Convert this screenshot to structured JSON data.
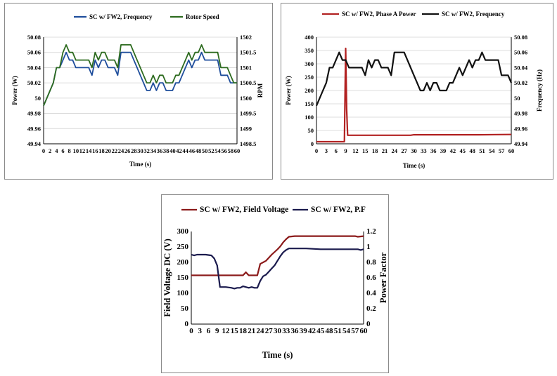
{
  "chart_data": [
    {
      "type": "line",
      "id": "chart1",
      "xlabel": "Time (s)",
      "ylabel": "Power (W)",
      "y2label": "RPM",
      "xlim": [
        0,
        60
      ],
      "ylim": [
        49.94,
        50.08
      ],
      "y2lim": [
        1498.5,
        1502
      ],
      "x_ticks": [
        "0",
        "2",
        "4",
        "6",
        "8",
        "10",
        "12",
        "14",
        "16",
        "18",
        "20",
        "22",
        "24",
        "26",
        "28",
        "30",
        "32",
        "34",
        "36",
        "38",
        "40",
        "42",
        "44",
        "46",
        "48",
        "50",
        "52",
        "54",
        "56",
        "58",
        "60"
      ],
      "y_ticks": [
        "49.94",
        "49.96",
        "49.98",
        "50",
        "50.02",
        "50.04",
        "50.06",
        "50.08"
      ],
      "y2_ticks": [
        "1498.5",
        "1499",
        "1499.5",
        "1500",
        "1500.5",
        "1501",
        "1501.5",
        "1502"
      ],
      "legend_position": "top",
      "grid": true,
      "series": [
        {
          "name": "SC w/ FW2, Frequency",
          "color": "#1f4e9c",
          "axis": "left",
          "x": [
            0,
            2,
            3,
            4,
            5,
            6,
            7,
            8,
            9,
            10,
            12,
            14,
            15,
            16,
            17,
            18,
            19,
            20,
            21,
            22,
            23,
            24,
            25,
            26,
            27,
            28,
            29,
            30,
            31,
            32,
            33,
            34,
            35,
            36,
            37,
            38,
            39,
            40,
            41,
            42,
            43,
            44,
            45,
            46,
            47,
            48,
            49,
            50,
            51,
            52,
            53,
            54,
            55,
            56,
            57,
            58,
            59,
            60
          ],
          "y": [
            49.99,
            50.01,
            50.02,
            50.04,
            50.04,
            50.05,
            50.06,
            50.05,
            50.05,
            50.04,
            50.04,
            50.04,
            50.03,
            50.05,
            50.04,
            50.05,
            50.05,
            50.04,
            50.04,
            50.04,
            50.03,
            50.06,
            50.06,
            50.06,
            50.06,
            50.05,
            50.04,
            50.03,
            50.02,
            50.01,
            50.01,
            50.02,
            50.01,
            50.02,
            50.02,
            50.01,
            50.01,
            50.01,
            50.02,
            50.02,
            50.03,
            50.04,
            50.05,
            50.04,
            50.05,
            50.05,
            50.06,
            50.05,
            50.05,
            50.05,
            50.05,
            50.05,
            50.03,
            50.03,
            50.03,
            50.02,
            50.02,
            50.02
          ]
        },
        {
          "name": "Rotor Speed",
          "color": "#2d6b1f",
          "axis": "right",
          "x": [
            0,
            2,
            3,
            4,
            5,
            6,
            7,
            8,
            9,
            10,
            12,
            14,
            15,
            16,
            17,
            18,
            19,
            20,
            21,
            22,
            23,
            24,
            25,
            26,
            27,
            28,
            29,
            30,
            31,
            32,
            33,
            34,
            35,
            36,
            37,
            38,
            39,
            40,
            41,
            42,
            43,
            44,
            45,
            46,
            47,
            48,
            49,
            50,
            51,
            52,
            53,
            54,
            55,
            56,
            57,
            58,
            59,
            60
          ],
          "y": [
            1499.75,
            1500.25,
            1500.5,
            1501.0,
            1501.0,
            1501.5,
            1501.75,
            1501.5,
            1501.5,
            1501.25,
            1501.25,
            1501.25,
            1501.0,
            1501.5,
            1501.25,
            1501.5,
            1501.5,
            1501.25,
            1501.25,
            1501.25,
            1501.0,
            1501.75,
            1501.75,
            1501.75,
            1501.75,
            1501.5,
            1501.25,
            1501.0,
            1500.75,
            1500.5,
            1500.5,
            1500.75,
            1500.5,
            1500.75,
            1500.75,
            1500.5,
            1500.5,
            1500.5,
            1500.75,
            1500.75,
            1501.0,
            1501.25,
            1501.5,
            1501.25,
            1501.5,
            1501.5,
            1501.75,
            1501.5,
            1501.5,
            1501.5,
            1501.5,
            1501.5,
            1501.0,
            1501.0,
            1501.0,
            1500.75,
            1500.5,
            1500.5
          ]
        }
      ]
    },
    {
      "type": "line",
      "id": "chart2",
      "xlabel": "Time (s)",
      "ylabel": "Power (W)",
      "y2label": "Frequency (Hz)",
      "xlim": [
        0,
        60
      ],
      "ylim": [
        0,
        400
      ],
      "y2lim": [
        49.94,
        50.08
      ],
      "x_ticks": [
        "0",
        "3",
        "6",
        "9",
        "12",
        "15",
        "18",
        "21",
        "24",
        "27",
        "30",
        "33",
        "36",
        "39",
        "42",
        "45",
        "48",
        "51",
        "54",
        "57",
        "60"
      ],
      "y_ticks": [
        "0",
        "50",
        "100",
        "150",
        "200",
        "250",
        "300",
        "350",
        "400"
      ],
      "y2_ticks": [
        "49.94",
        "49.96",
        "49.98",
        "50",
        "50.02",
        "50.04",
        "50.06",
        "50.08"
      ],
      "legend_position": "top",
      "grid": true,
      "series": [
        {
          "name": "SC w/ FW2, Phase A Power",
          "color": "#b22222",
          "axis": "left",
          "x": [
            0,
            8.6,
            9.0,
            9.3,
            9.6,
            10,
            20,
            29,
            30,
            40,
            50,
            60
          ],
          "y": [
            8,
            8,
            358,
            130,
            32,
            32,
            32,
            32,
            34,
            34,
            34,
            35
          ]
        },
        {
          "name": "SC w/ FW2, Frequency",
          "color": "#111111",
          "axis": "right",
          "x": [
            0,
            2,
            3,
            4,
            5,
            6,
            7,
            8,
            9,
            10,
            12,
            14,
            15,
            16,
            17,
            18,
            19,
            20,
            21,
            22,
            23,
            24,
            25,
            26,
            27,
            28,
            29,
            30,
            31,
            32,
            33,
            34,
            35,
            36,
            37,
            38,
            39,
            40,
            41,
            42,
            43,
            44,
            45,
            46,
            47,
            48,
            49,
            50,
            51,
            52,
            53,
            54,
            55,
            56,
            57,
            58,
            59,
            60
          ],
          "y": [
            49.99,
            50.01,
            50.02,
            50.04,
            50.04,
            50.05,
            50.06,
            50.05,
            50.05,
            50.04,
            50.04,
            50.04,
            50.03,
            50.05,
            50.04,
            50.05,
            50.05,
            50.04,
            50.04,
            50.04,
            50.03,
            50.06,
            50.06,
            50.06,
            50.06,
            50.05,
            50.04,
            50.03,
            50.02,
            50.01,
            50.01,
            50.02,
            50.01,
            50.02,
            50.02,
            50.01,
            50.01,
            50.01,
            50.02,
            50.02,
            50.03,
            50.04,
            50.03,
            50.04,
            50.05,
            50.04,
            50.05,
            50.05,
            50.06,
            50.05,
            50.05,
            50.05,
            50.05,
            50.05,
            50.03,
            50.03,
            50.03,
            50.02
          ]
        }
      ]
    },
    {
      "type": "line",
      "id": "chart3",
      "xlabel": "Time (s)",
      "ylabel": "Field Voltage DC (V)",
      "y2label": "Power Factor",
      "xlim": [
        0,
        60
      ],
      "ylim": [
        0,
        300
      ],
      "y2lim": [
        0,
        1.2
      ],
      "x_ticks": [
        "0",
        "3",
        "6",
        "9",
        "12",
        "15",
        "18",
        "21",
        "24",
        "27",
        "30",
        "33",
        "36",
        "39",
        "42",
        "45",
        "48",
        "51",
        "54",
        "57",
        "60"
      ],
      "y_ticks": [
        "0",
        "50",
        "100",
        "150",
        "200",
        "250",
        "300"
      ],
      "y2_ticks": [
        "0",
        "0.2",
        "0.4",
        "0.6",
        "0.8",
        "1",
        "1.2"
      ],
      "legend_position": "top",
      "grid": false,
      "series": [
        {
          "name": "SC w/ FW2,  Field Voltage",
          "color": "#8b1a1a",
          "axis": "left",
          "x": [
            0,
            5,
            10,
            15,
            18,
            19,
            20,
            21,
            23,
            24,
            25,
            26,
            27,
            28,
            30,
            31,
            32,
            33,
            34,
            36,
            40,
            45,
            50,
            55,
            57,
            58,
            60
          ],
          "y": [
            158,
            158,
            158,
            158,
            158,
            168,
            158,
            158,
            158,
            195,
            200,
            205,
            215,
            225,
            242,
            252,
            265,
            275,
            283,
            285,
            285,
            285,
            285,
            285,
            285,
            283,
            285
          ]
        },
        {
          "name": "SC w/ FW2, P.F",
          "color": "#1a1a4d",
          "axis": "right",
          "x": [
            0,
            1,
            2,
            5,
            7,
            8,
            9,
            10,
            12,
            14,
            15,
            16,
            17,
            18,
            19,
            20,
            21,
            22,
            23,
            24,
            25,
            26,
            27,
            28,
            29,
            30,
            31,
            32,
            33,
            34,
            36,
            40,
            45,
            50,
            55,
            58,
            59,
            60
          ],
          "y": [
            0.9,
            0.89,
            0.9,
            0.9,
            0.89,
            0.85,
            0.76,
            0.48,
            0.48,
            0.47,
            0.46,
            0.47,
            0.47,
            0.49,
            0.48,
            0.47,
            0.48,
            0.47,
            0.47,
            0.56,
            0.62,
            0.64,
            0.68,
            0.72,
            0.76,
            0.82,
            0.88,
            0.93,
            0.96,
            0.98,
            0.98,
            0.98,
            0.97,
            0.97,
            0.97,
            0.97,
            0.96,
            0.97
          ]
        }
      ]
    }
  ]
}
